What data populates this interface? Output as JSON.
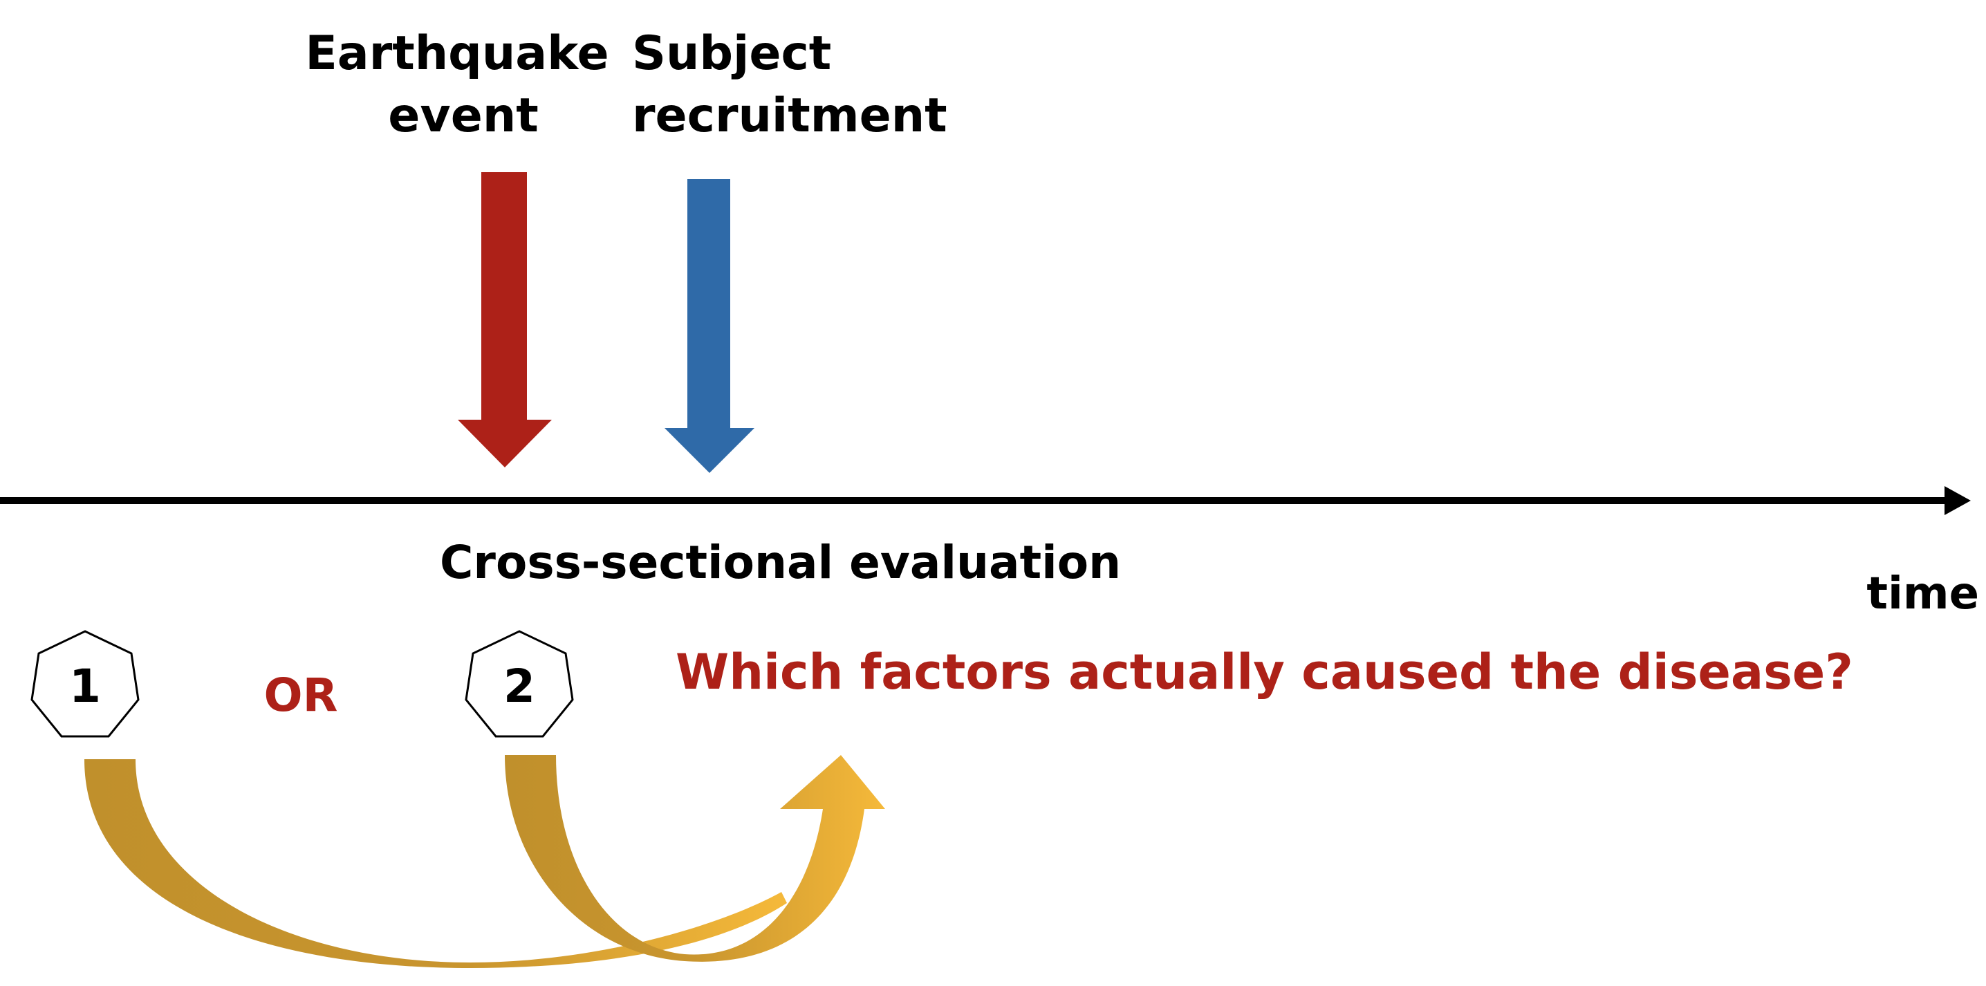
{
  "labels": {
    "earthquake_line1": "Earthquake",
    "earthquake_line2": "event",
    "recruitment_line1": "Subject",
    "recruitment_line2": "recruitment",
    "evaluation": "Cross-sectional evaluation",
    "time": "time",
    "option_1": "1",
    "or": "OR",
    "option_2": "2",
    "question": "Which factors actually caused the disease?"
  },
  "colors": {
    "earthquake_arrow": "#ad2118",
    "recruitment_arrow": "#2f6aa8",
    "accent_text": "#ad2118",
    "curve_dark": "#c0902c",
    "curve_light": "#f5b93a",
    "axis": "#000000"
  },
  "icons": {
    "option_marker": "heptagon"
  }
}
